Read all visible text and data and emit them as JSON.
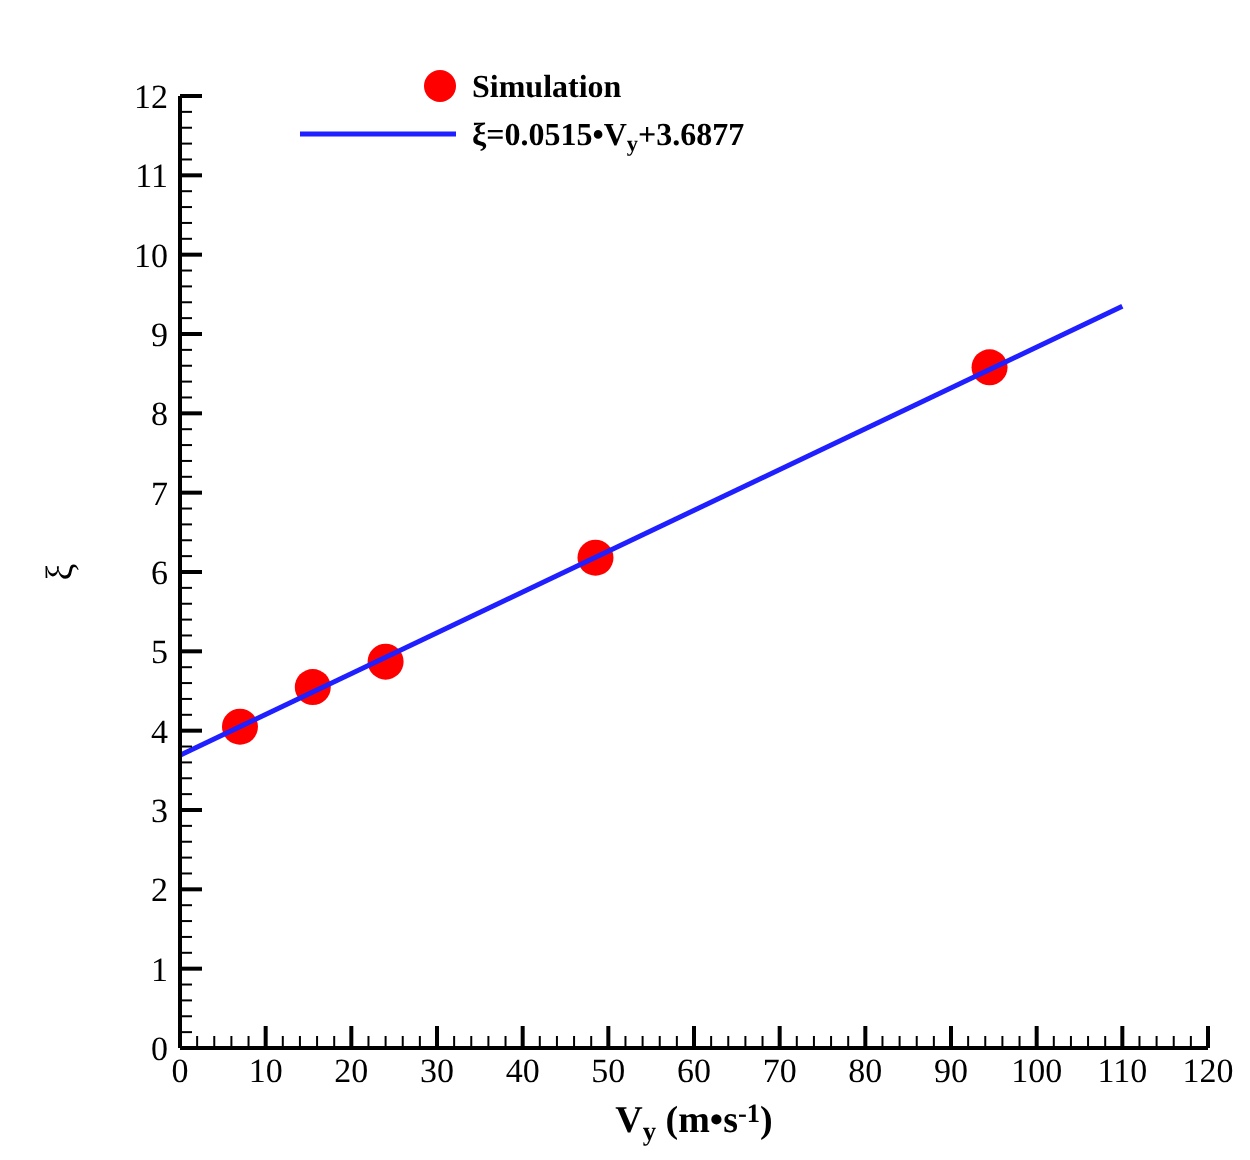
{
  "chart_data": {
    "type": "scatter",
    "xlabel": "V$_{y}$ (m•s$^{-1}$)",
    "ylabel": "ξ",
    "xlim": [
      0,
      120
    ],
    "ylim": [
      0,
      12
    ],
    "xticks": [
      0,
      10,
      20,
      30,
      40,
      50,
      60,
      70,
      80,
      90,
      100,
      110,
      120,
      {
        "value": 2,
        "label": null
      },
      {
        "value": 4,
        "label": null
      },
      {
        "value": 6,
        "label": null
      },
      {
        "value": 8,
        "label": null
      },
      {
        "value": 12,
        "label": null
      },
      {
        "value": 14,
        "label": null
      },
      {
        "value": 16,
        "label": null
      },
      {
        "value": 18,
        "label": null
      },
      {
        "value": 22,
        "label": null
      },
      {
        "value": 24,
        "label": null
      },
      {
        "value": 26,
        "label": null
      },
      {
        "value": 28,
        "label": null
      },
      {
        "value": 32,
        "label": null
      },
      {
        "value": 34,
        "label": null
      },
      {
        "value": 36,
        "label": null
      },
      {
        "value": 38,
        "label": null
      },
      {
        "value": 42,
        "label": null
      },
      {
        "value": 44,
        "label": null
      },
      {
        "value": 46,
        "label": null
      },
      {
        "value": 48,
        "label": null
      },
      {
        "value": 52,
        "label": null
      },
      {
        "value": 54,
        "label": null
      },
      {
        "value": 56,
        "label": null
      },
      {
        "value": 58,
        "label": null
      },
      {
        "value": 62,
        "label": null
      },
      {
        "value": 64,
        "label": null
      },
      {
        "value": 66,
        "label": null
      },
      {
        "value": 68,
        "label": null
      },
      {
        "value": 72,
        "label": null
      },
      {
        "value": 74,
        "label": null
      },
      {
        "value": 76,
        "label": null
      },
      {
        "value": 78,
        "label": null
      },
      {
        "value": 82,
        "label": null
      },
      {
        "value": 84,
        "label": null
      },
      {
        "value": 86,
        "label": null
      },
      {
        "value": 88,
        "label": null
      },
      {
        "value": 92,
        "label": null
      },
      {
        "value": 94,
        "label": null
      },
      {
        "value": 96,
        "label": null
      },
      {
        "value": 98,
        "label": null
      },
      {
        "value": 102,
        "label": null
      },
      {
        "value": 104,
        "label": null
      },
      {
        "value": 106,
        "label": null
      },
      {
        "value": 108,
        "label": null
      },
      {
        "value": 112,
        "label": null
      },
      {
        "value": 114,
        "label": null
      },
      {
        "value": 116,
        "label": null
      },
      {
        "value": 118,
        "label": null
      }
    ],
    "yticks": [
      0,
      1,
      2,
      3,
      4,
      5,
      6,
      7,
      8,
      9,
      10,
      11,
      12,
      {
        "value": 0.2,
        "label": null
      },
      {
        "value": 0.4,
        "label": null
      },
      {
        "value": 0.6,
        "label": null
      },
      {
        "value": 0.8,
        "label": null
      },
      {
        "value": 1.2,
        "label": null
      },
      {
        "value": 1.4,
        "label": null
      },
      {
        "value": 1.6,
        "label": null
      },
      {
        "value": 1.8,
        "label": null
      },
      {
        "value": 2.2,
        "label": null
      },
      {
        "value": 2.4,
        "label": null
      },
      {
        "value": 2.6,
        "label": null
      },
      {
        "value": 2.8,
        "label": null
      },
      {
        "value": 3.2,
        "label": null
      },
      {
        "value": 3.4,
        "label": null
      },
      {
        "value": 3.6,
        "label": null
      },
      {
        "value": 3.8,
        "label": null
      },
      {
        "value": 4.2,
        "label": null
      },
      {
        "value": 4.4,
        "label": null
      },
      {
        "value": 4.6,
        "label": null
      },
      {
        "value": 4.8,
        "label": null
      },
      {
        "value": 5.2,
        "label": null
      },
      {
        "value": 5.4,
        "label": null
      },
      {
        "value": 5.6,
        "label": null
      },
      {
        "value": 5.8,
        "label": null
      },
      {
        "value": 6.2,
        "label": null
      },
      {
        "value": 6.4,
        "label": null
      },
      {
        "value": 6.6,
        "label": null
      },
      {
        "value": 6.8,
        "label": null
      },
      {
        "value": 7.2,
        "label": null
      },
      {
        "value": 7.4,
        "label": null
      },
      {
        "value": 7.6,
        "label": null
      },
      {
        "value": 7.8,
        "label": null
      },
      {
        "value": 8.2,
        "label": null
      },
      {
        "value": 8.4,
        "label": null
      },
      {
        "value": 8.6,
        "label": null
      },
      {
        "value": 8.8,
        "label": null
      },
      {
        "value": 9.2,
        "label": null
      },
      {
        "value": 9.4,
        "label": null
      },
      {
        "value": 9.6,
        "label": null
      },
      {
        "value": 9.8,
        "label": null
      },
      {
        "value": 10.2,
        "label": null
      },
      {
        "value": 10.4,
        "label": null
      },
      {
        "value": 10.6,
        "label": null
      },
      {
        "value": 10.8,
        "label": null
      },
      {
        "value": 11.2,
        "label": null
      },
      {
        "value": 11.4,
        "label": null
      },
      {
        "value": 11.6,
        "label": null
      },
      {
        "value": 11.8,
        "label": null
      }
    ],
    "grid": false,
    "legend": "top left",
    "series": [
      {
        "name": "Simulation",
        "marker": "circle",
        "color": "#ff0000",
        "x": [
          7,
          15.5,
          24,
          48.5,
          94.5
        ],
        "values": [
          4.05,
          4.55,
          4.87,
          6.18,
          8.58
        ]
      },
      {
        "name": "ξ=0.0515•V$_{y}$+3.6877",
        "type": "line",
        "color": "#1f1fff",
        "line_style": "solid",
        "x": [
          0,
          110
        ],
        "values": [
          3.69,
          9.35
        ]
      }
    ]
  }
}
